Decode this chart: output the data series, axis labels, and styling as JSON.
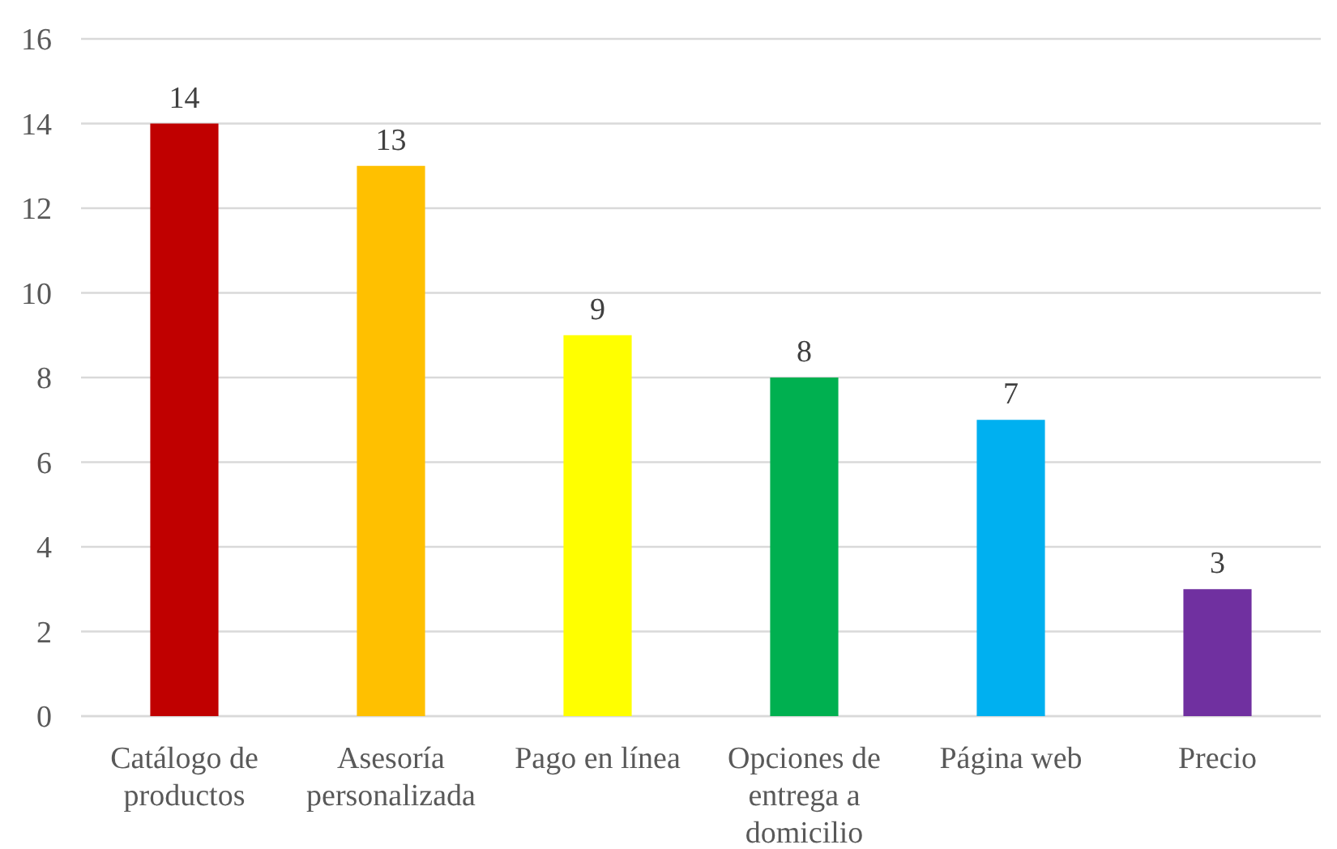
{
  "chart_data": {
    "type": "bar",
    "categories": [
      "Catálogo de productos",
      "Asesoría personalizada",
      "Pago en línea",
      "Opciones de entrega a domicilio",
      "Página web",
      "Precio"
    ],
    "values": [
      14,
      13,
      9,
      8,
      7,
      3
    ],
    "colors": [
      "#c00000",
      "#ffc000",
      "#ffff00",
      "#00b050",
      "#00b0f0",
      "#7030a0"
    ],
    "ylim": [
      0,
      16
    ],
    "yticks": [
      0,
      2,
      4,
      6,
      8,
      10,
      12,
      14,
      16
    ],
    "grid": "y",
    "data_labels": true
  }
}
